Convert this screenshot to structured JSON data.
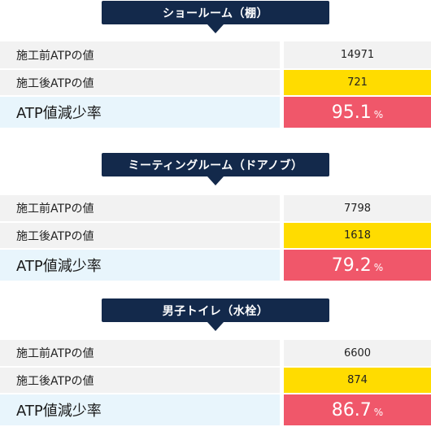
{
  "sections": [
    {
      "title": "ショールーム（棚）",
      "before_label": "施工前ATPの値",
      "before_value": "14971",
      "after_label": "施工後ATPの値",
      "after_value": "721",
      "rate_label": "ATP値減少率",
      "rate_value": "95.1",
      "rate_unit": "%"
    },
    {
      "title": "ミーティングルーム（ドアノブ）",
      "before_label": "施工前ATPの値",
      "before_value": "7798",
      "after_label": "施工後ATPの値",
      "after_value": "1618",
      "rate_label": "ATP値減少率",
      "rate_value": "79.2",
      "rate_unit": "%"
    },
    {
      "title": "男子トイレ（水栓）",
      "before_label": "施工前ATPの値",
      "before_value": "6600",
      "after_label": "施工後ATPの値",
      "after_value": "874",
      "rate_label": "ATP値減少率",
      "rate_value": "86.7",
      "rate_unit": "%"
    }
  ],
  "colors": {
    "header_bg": "#13294b",
    "row_bg": "#f2f2f2",
    "after_value_bg": "#ffdc00",
    "rate_label_bg": "#e8f5fc",
    "rate_value_bg": "#f0576a"
  }
}
